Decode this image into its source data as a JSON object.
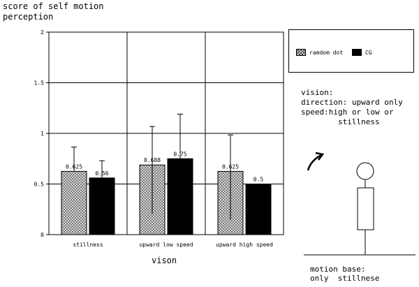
{
  "chart_data": {
    "type": "bar",
    "title": "",
    "ylabel": "score of self motion\nperception",
    "xlabel": "vison",
    "ylim": [
      0,
      2
    ],
    "yticks": [
      "0",
      "0.5",
      "1",
      "1.5",
      "2"
    ],
    "categories": [
      "stillness",
      "upward low speed",
      "upward high speed"
    ],
    "series": [
      {
        "name": "ramdom dot",
        "values": [
          0.625,
          0.688,
          0.625
        ],
        "labels": [
          "0.625",
          "0.688",
          "0.625"
        ],
        "errors": [
          0.24,
          0.38,
          0.36
        ],
        "pattern": "crosshatch"
      },
      {
        "name": "CG",
        "values": [
          0.56,
          0.75,
          0.5
        ],
        "labels": [
          "0.56",
          "0.75",
          "0.5"
        ],
        "errors": [
          0.17,
          0.44,
          0.0
        ],
        "pattern": "solid"
      }
    ],
    "grid": true,
    "legend_position": "top-right"
  },
  "annotations": {
    "vision": "vision:\ndirection: upward only\nspeed:high or low or\n        stillness",
    "motion_base": "motion base:\nonly  stillnese"
  },
  "colors": {
    "bar_solid": "#000000",
    "bar_pattern": "#d9d9d9",
    "grid": "#000000"
  }
}
